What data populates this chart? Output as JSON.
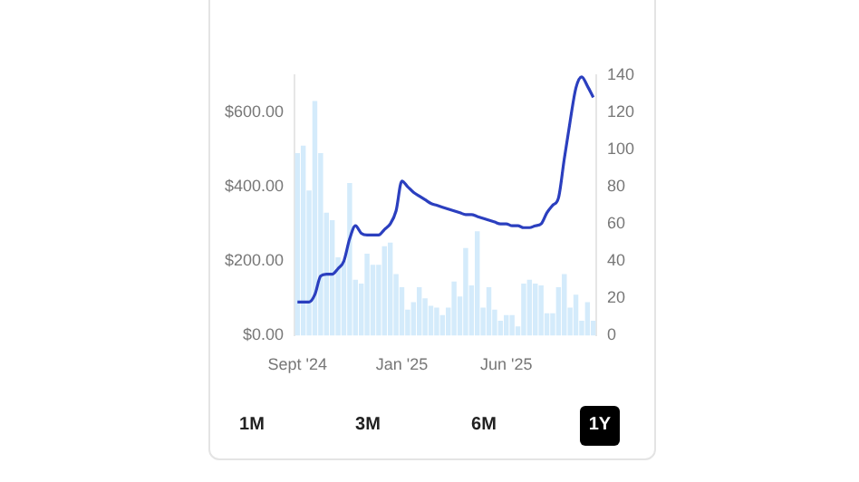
{
  "chart_data": {
    "type": "bar",
    "categories": [
      "Sept '24",
      null,
      null,
      null,
      null,
      null,
      null,
      null,
      null,
      null,
      null,
      null,
      null,
      null,
      null,
      null,
      null,
      null,
      "Jan '25",
      null,
      null,
      null,
      null,
      null,
      null,
      null,
      null,
      null,
      null,
      null,
      null,
      null,
      null,
      null,
      null,
      null,
      "Jun '25",
      null,
      null,
      null,
      null,
      null,
      null,
      null,
      null,
      null,
      null,
      null,
      null,
      null,
      null,
      null
    ],
    "series": [
      {
        "color": "#d4ebfb",
        "values": [
          490,
          510,
          390,
          630,
          490,
          330,
          310,
          210,
          200,
          410,
          150,
          140,
          220,
          190,
          190,
          240,
          250,
          165,
          130,
          70,
          90,
          130,
          100,
          80,
          75,
          55,
          75,
          145,
          105,
          235,
          135,
          280,
          75,
          130,
          70,
          40,
          55,
          55,
          25,
          140,
          150,
          140,
          135,
          60,
          60,
          130,
          165,
          75,
          110,
          40,
          90,
          40
        ]
      },
      {
        "type": "line",
        "axis": "y2",
        "color": "#2b3fbf",
        "values": [
          18,
          18,
          18,
          22,
          32,
          33,
          33,
          36,
          40,
          52,
          59,
          55,
          54,
          54,
          54,
          57,
          60,
          67,
          83,
          80,
          77,
          75,
          73,
          71,
          70,
          69,
          68,
          67,
          66,
          65,
          65,
          64,
          63,
          62,
          61,
          60,
          60,
          59,
          59,
          58,
          58,
          59,
          60,
          66,
          70,
          74,
          95,
          115,
          133,
          139,
          134,
          128
        ]
      }
    ],
    "ylim": [
      0,
      700
    ],
    "yticks": [
      {
        "value": 0,
        "label": "$0.00"
      },
      {
        "value": 200,
        "label": "$200.00"
      },
      {
        "value": 400,
        "label": "$400.00"
      },
      {
        "value": 600,
        "label": "$600.00"
      }
    ],
    "y2lim": [
      0,
      140
    ],
    "y2ticks": [
      0,
      20,
      40,
      60,
      80,
      100,
      120,
      140
    ],
    "grid": false,
    "legend": false,
    "marker": "none",
    "annotations": [
      "1M",
      "3M",
      "6M",
      "1Y"
    ]
  }
}
